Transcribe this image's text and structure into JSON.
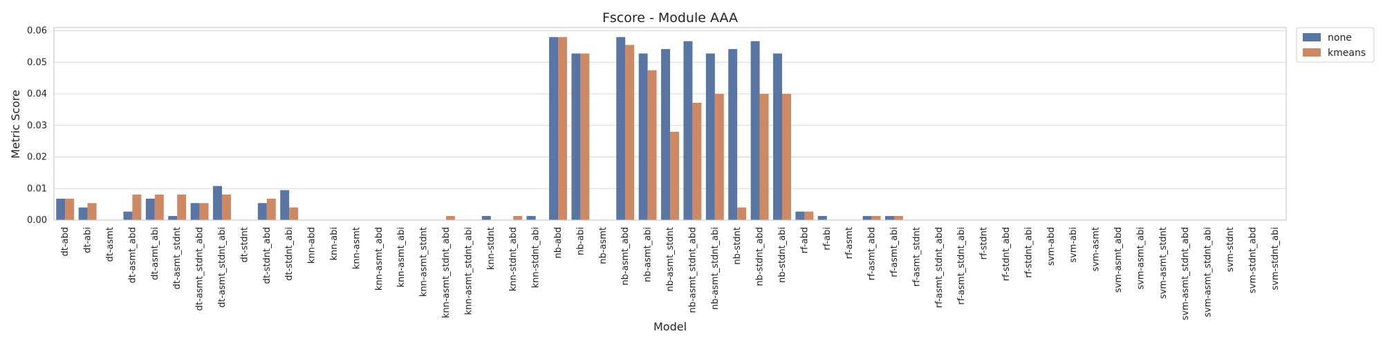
{
  "chart_data": {
    "type": "bar",
    "title": "Fscore - Module AAA",
    "xlabel": "Model",
    "ylabel": "Metric Score",
    "ylim": [
      0,
      0.061
    ],
    "yticks": [
      "0.00",
      "0.01",
      "0.02",
      "0.03",
      "0.04",
      "0.05",
      "0.06"
    ],
    "ytick_values": [
      0,
      0.01,
      0.02,
      0.03,
      0.04,
      0.05,
      0.06
    ],
    "grid": true,
    "legend_placement": "outside-top-right",
    "categories": [
      "dt-abd",
      "dt-abi",
      "dt-asmt",
      "dt-asmt_abd",
      "dt-asmt_abi",
      "dt-asmt_stdnt",
      "dt-asmt_stdnt_abd",
      "dt-asmt_stdnt_abi",
      "dt-stdnt",
      "dt-stdnt_abd",
      "dt-stdnt_abi",
      "knn-abd",
      "knn-abi",
      "knn-asmt",
      "knn-asmt_abd",
      "knn-asmt_abi",
      "knn-asmt_stdnt",
      "knn-asmt_stdnt_abd",
      "knn-asmt_stdnt_abi",
      "knn-stdnt",
      "knn-stdnt_abd",
      "knn-stdnt_abi",
      "nb-abd",
      "nb-abi",
      "nb-asmt",
      "nb-asmt_abd",
      "nb-asmt_abi",
      "nb-asmt_stdnt",
      "nb-asmt_stdnt_abd",
      "nb-asmt_stdnt_abi",
      "nb-stdnt",
      "nb-stdnt_abd",
      "nb-stdnt_abi",
      "rf-abd",
      "rf-abi",
      "rf-asmt",
      "rf-asmt_abd",
      "rf-asmt_abi",
      "rf-asmt_stdnt",
      "rf-asmt_stdnt_abd",
      "rf-asmt_stdnt_abi",
      "rf-stdnt",
      "rf-stdnt_abd",
      "rf-stdnt_abi",
      "svm-abd",
      "svm-abi",
      "svm-asmt",
      "svm-asmt_abd",
      "svm-asmt_abi",
      "svm-asmt_stdnt",
      "svm-asmt_stdnt_abd",
      "svm-asmt_stdnt_abi",
      "svm-stdnt",
      "svm-stdnt_abd",
      "svm-stdnt_abi"
    ],
    "series": [
      {
        "name": "none",
        "color": "#5875a4",
        "values": [
          0.0068,
          0.004,
          0,
          0.0027,
          0.0068,
          0.0013,
          0.0054,
          0.0108,
          0,
          0.0054,
          0.0095,
          0,
          0,
          0,
          0,
          0,
          0,
          0,
          0,
          0.0013,
          0,
          0.0013,
          0.058,
          0.0528,
          0,
          0.058,
          0.0528,
          0.0542,
          0.0567,
          0.0528,
          0.0542,
          0.0567,
          0.0528,
          0.0027,
          0.0013,
          0,
          0.0013,
          0.0013,
          0,
          0,
          0,
          0,
          0,
          0,
          0,
          0,
          0,
          0,
          0,
          0,
          0,
          0,
          0,
          0,
          0
        ]
      },
      {
        "name": "kmeans",
        "color": "#cc8963",
        "values": [
          0.0068,
          0.0054,
          0,
          0.0081,
          0.0081,
          0.0081,
          0.0054,
          0.0081,
          0,
          0.0068,
          0.004,
          0,
          0,
          0,
          0,
          0,
          0,
          0.0013,
          0,
          0,
          0.0013,
          0,
          0.058,
          0.0528,
          0,
          0.0555,
          0.0475,
          0.028,
          0.0372,
          0.04,
          0.004,
          0.04,
          0.04,
          0.0027,
          0,
          0,
          0.0013,
          0.0013,
          0,
          0,
          0,
          0,
          0,
          0,
          0,
          0,
          0,
          0,
          0,
          0,
          0,
          0,
          0,
          0,
          0
        ]
      }
    ]
  }
}
